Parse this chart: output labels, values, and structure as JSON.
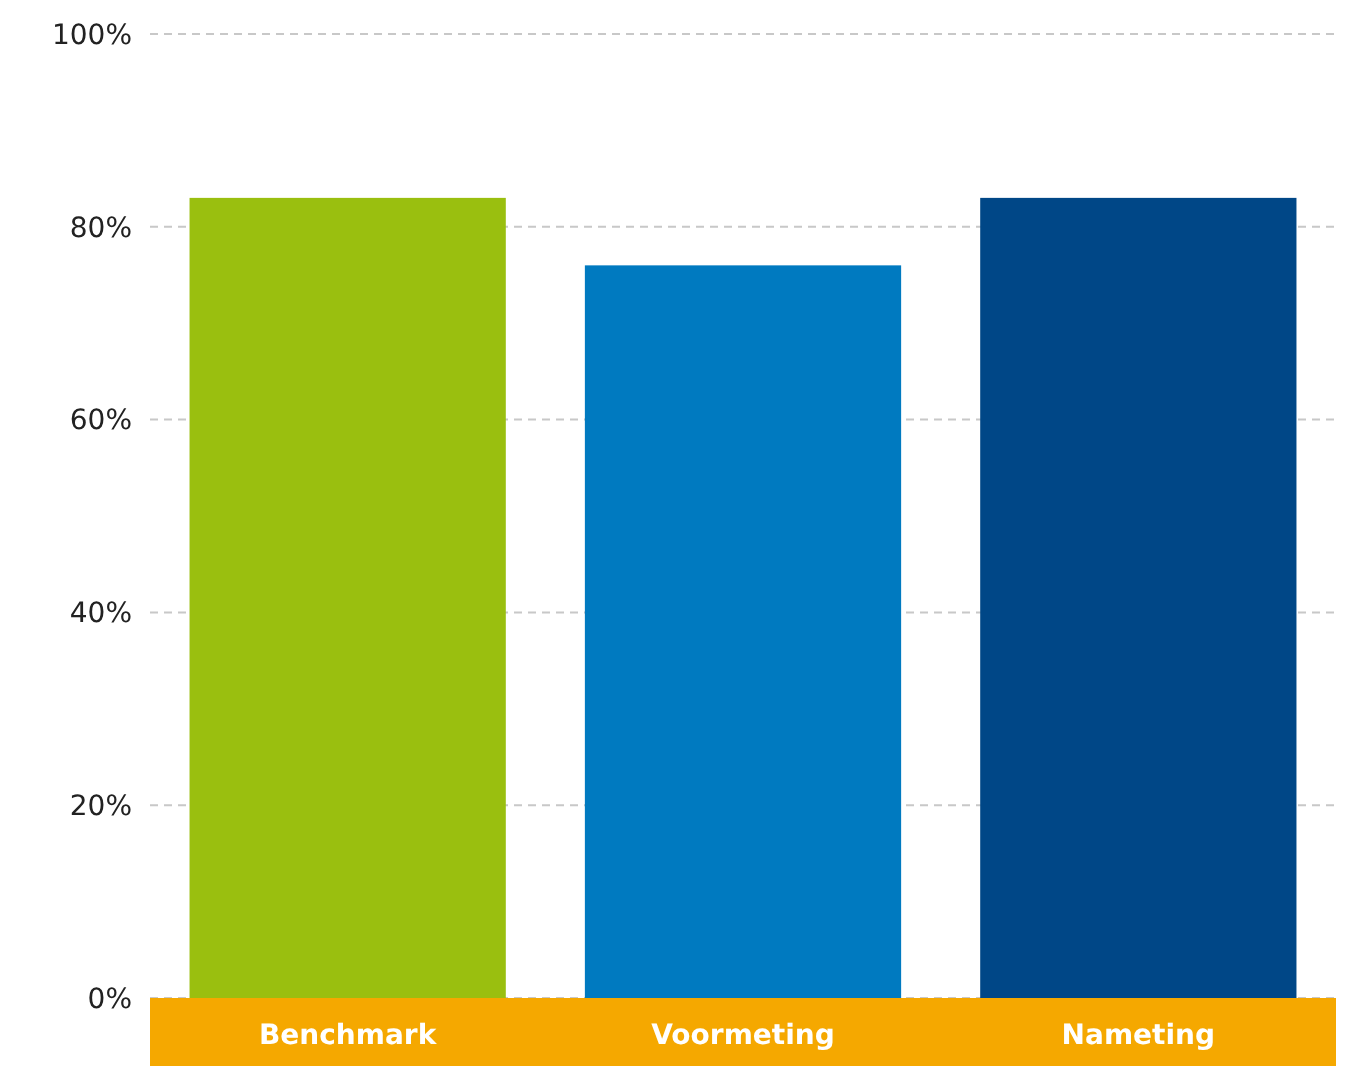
{
  "chart_data": {
    "type": "bar",
    "categories": [
      "Benchmark",
      "Voormeting",
      "Nameting"
    ],
    "values": [
      83,
      76,
      83
    ],
    "colors": [
      "#9abf0f",
      "#007ac0",
      "#004787"
    ],
    "ylim": [
      0,
      100
    ],
    "yticks": [
      {
        "value": 0,
        "label": "0%"
      },
      {
        "value": 20,
        "label": "20%"
      },
      {
        "value": 40,
        "label": "40%"
      },
      {
        "value": 60,
        "label": "60%"
      },
      {
        "value": 80,
        "label": "80%"
      },
      {
        "value": 100,
        "label": "100%"
      }
    ],
    "grid": "y"
  }
}
